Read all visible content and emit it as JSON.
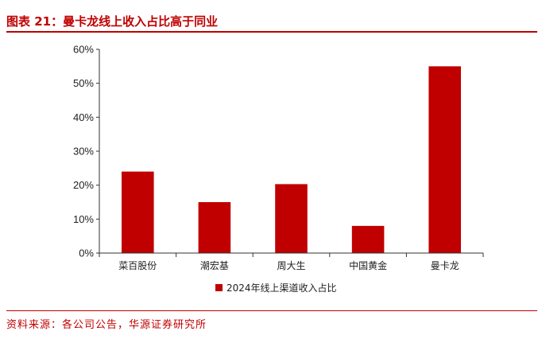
{
  "figure": {
    "title": "图表 21：曼卡龙线上收入占比高于同业",
    "source": "资料来源：各公司公告，华源证券研究所"
  },
  "chart_data": {
    "type": "bar",
    "categories": [
      "菜百股份",
      "潮宏基",
      "周大生",
      "中国黄金",
      "曼卡龙"
    ],
    "series": [
      {
        "name": "2024年线上渠道收入占比",
        "values": [
          24,
          15,
          20.3,
          8,
          55
        ],
        "color": "#c00000"
      }
    ],
    "unit": "%",
    "ylim": [
      0,
      60
    ],
    "yticks": [
      0,
      10,
      20,
      30,
      40,
      50,
      60
    ],
    "ytick_labels": [
      "0%",
      "10%",
      "20%",
      "30%",
      "40%",
      "50%",
      "60%"
    ],
    "grid": false,
    "legend_position": "bottom"
  }
}
